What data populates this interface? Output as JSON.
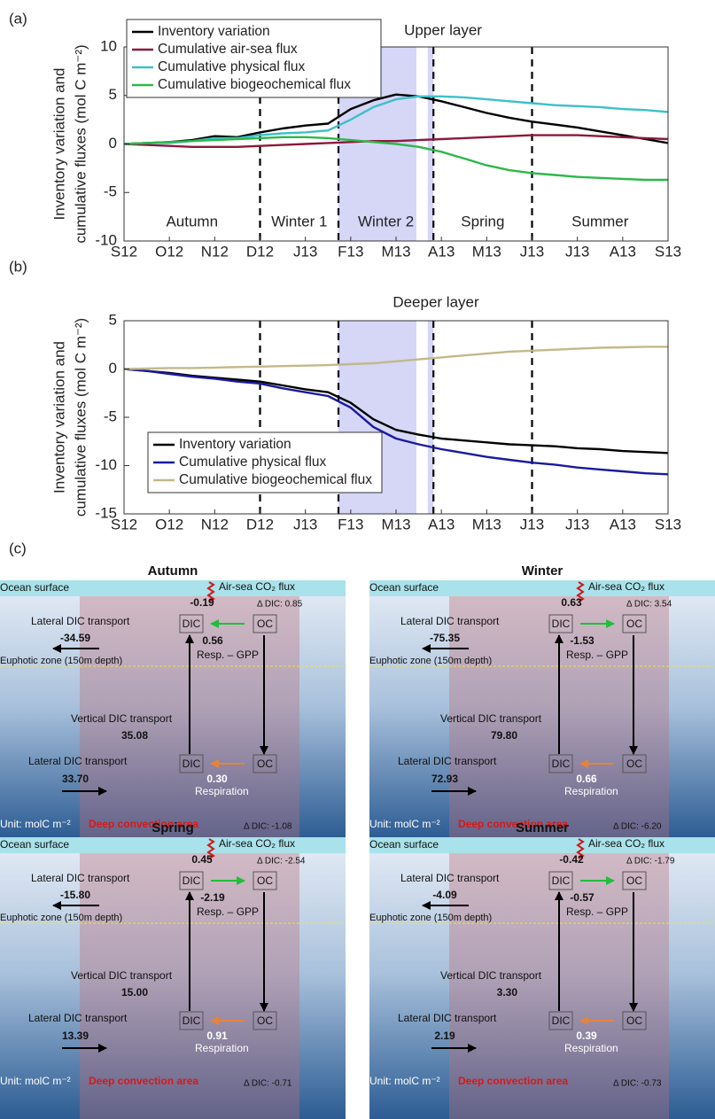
{
  "chart_data": [
    {
      "type": "line",
      "panel_label": "(a)",
      "title": "Upper layer",
      "ylabel": "Inventory variation and",
      "ylabel2": "cumulative fluxes (mol C m⁻²)",
      "categories": [
        "S12",
        null,
        "O12",
        null,
        "N12",
        null,
        "D12",
        null,
        "J13",
        null,
        "F13",
        null,
        "M13",
        null,
        "A13",
        null,
        "M13",
        null,
        "J13",
        null,
        "J13",
        null,
        "A13",
        null,
        "S13"
      ],
      "series": [
        {
          "name": "Inventory variation",
          "color": "#000000",
          "values": [
            0,
            0.1,
            0.2,
            0.4,
            0.8,
            0.7,
            1.2,
            1.6,
            1.9,
            2.1,
            3.6,
            4.5,
            5.1,
            4.9,
            4.4,
            3.8,
            3.2,
            2.7,
            2.3,
            2.0,
            1.7,
            1.3,
            0.9,
            0.5,
            0.1
          ]
        },
        {
          "name": "Cumulative air-sea flux",
          "color": "#8b1a3a",
          "values": [
            0,
            -0.1,
            -0.2,
            -0.3,
            -0.3,
            -0.3,
            -0.2,
            -0.1,
            0,
            0.1,
            0.2,
            0.3,
            0.3,
            0.4,
            0.5,
            0.6,
            0.7,
            0.8,
            0.9,
            0.9,
            0.9,
            0.8,
            0.7,
            0.6,
            0.5
          ]
        },
        {
          "name": "Cumulative physical flux",
          "color": "#3cc0c8",
          "values": [
            0,
            0.1,
            0.1,
            0.3,
            0.6,
            0.6,
            0.9,
            1.1,
            1.2,
            1.4,
            2.5,
            3.8,
            4.6,
            4.9,
            4.9,
            4.8,
            4.6,
            4.4,
            4.2,
            4.0,
            3.9,
            3.8,
            3.6,
            3.5,
            3.3
          ]
        },
        {
          "name": "Cumulative biogeochemical flux",
          "color": "#2db84a",
          "values": [
            0,
            0.1,
            0.2,
            0.3,
            0.4,
            0.5,
            0.6,
            0.7,
            0.7,
            0.6,
            0.4,
            0.2,
            0,
            -0.3,
            -0.8,
            -1.5,
            -2.2,
            -2.7,
            -3.0,
            -3.2,
            -3.4,
            -3.5,
            -3.6,
            -3.7,
            -3.7
          ]
        }
      ],
      "ylim": [
        -10,
        10
      ],
      "yticks": [
        -10,
        -5,
        0,
        5,
        10
      ],
      "legend": "upper left",
      "dividers": [
        6,
        9.46,
        13.65,
        18
      ],
      "shaded": [
        [
          9.46,
          12.9
        ],
        [
          13.4,
          13.65
        ]
      ],
      "shade_color": "#d6d6f7",
      "period_labels": [
        "Autumn",
        "Winter 1",
        "Winter 2",
        "Spring",
        "Summer"
      ]
    },
    {
      "type": "line",
      "panel_label": "(b)",
      "title": "Deeper layer",
      "ylabel": "Inventory variation and",
      "ylabel2": "cumulative fluxes (mol C m⁻²)",
      "categories": [
        "S12",
        null,
        "O12",
        null,
        "N12",
        null,
        "D12",
        null,
        "J13",
        null,
        "F13",
        null,
        "M13",
        null,
        "A13",
        null,
        "M13",
        null,
        "J13",
        null,
        "J13",
        null,
        "A13",
        null,
        "S13"
      ],
      "series": [
        {
          "name": "Inventory variation",
          "color": "#000000",
          "values": [
            0,
            -0.2,
            -0.4,
            -0.7,
            -0.9,
            -1.1,
            -1.3,
            -1.7,
            -2.1,
            -2.4,
            -3.5,
            -5.2,
            -6.3,
            -6.8,
            -7.2,
            -7.4,
            -7.6,
            -7.8,
            -7.9,
            -8.0,
            -8.2,
            -8.3,
            -8.5,
            -8.6,
            -8.7
          ]
        },
        {
          "name": "Cumulative physical flux",
          "color": "#1a1aa0",
          "values": [
            0,
            -0.2,
            -0.5,
            -0.8,
            -1.0,
            -1.3,
            -1.5,
            -2.0,
            -2.4,
            -2.8,
            -4.0,
            -6.0,
            -7.2,
            -7.8,
            -8.3,
            -8.7,
            -9.1,
            -9.4,
            -9.7,
            -9.9,
            -10.2,
            -10.4,
            -10.6,
            -10.8,
            -10.9
          ]
        },
        {
          "name": "Cumulative biogeochemical flux",
          "color": "#c2b98a",
          "values": [
            0,
            0.05,
            0.1,
            0.1,
            0.15,
            0.2,
            0.25,
            0.3,
            0.35,
            0.4,
            0.5,
            0.6,
            0.8,
            1.0,
            1.2,
            1.4,
            1.6,
            1.8,
            1.9,
            2.0,
            2.1,
            2.2,
            2.25,
            2.3,
            2.3
          ]
        }
      ],
      "ylim": [
        -15,
        5
      ],
      "yticks": [
        -15,
        -10,
        -5,
        0,
        5
      ],
      "legend": "lower left",
      "dividers": [
        6,
        9.46,
        13.65,
        18
      ],
      "shaded": [
        [
          9.46,
          12.9
        ],
        [
          13.4,
          13.65
        ]
      ],
      "shade_color": "#d6d6f7"
    }
  ],
  "diagram": {
    "panel_label": "(c)",
    "labels": {
      "ocean_surface": "Ocean surface",
      "air_sea": "Air-sea CO₂ flux",
      "lateral": "Lateral DIC transport",
      "dic": "DIC",
      "oc": "OC",
      "resp_gpp": "Resp. – GPP",
      "euphotic": "Euphotic zone (150m depth)",
      "vertical": "Vertical DIC transport",
      "respiration": "Respiration",
      "unit": "Unit: molC m⁻²",
      "deep": "Deep convection area"
    },
    "panels": [
      {
        "title": "Autumn",
        "air_sea": "-0.19",
        "delta_top": "Δ DIC: 0.85",
        "lateral_top": "-34.59",
        "resp_gpp": "0.56",
        "vertical": "35.08",
        "lateral_bottom": "33.70",
        "respiration": "0.30",
        "delta_bottom": "Δ DIC: -1.08"
      },
      {
        "title": "Winter",
        "air_sea": "0.63",
        "delta_top": "Δ DIC: 3.54",
        "lateral_top": "-75.35",
        "resp_gpp": "-1.53",
        "vertical": "79.80",
        "lateral_bottom": "72.93",
        "respiration": "0.66",
        "delta_bottom": "Δ DIC: -6.20"
      },
      {
        "title": "Spring",
        "air_sea": "0.45",
        "delta_top": "Δ DIC: -2.54",
        "lateral_top": "-15.80",
        "resp_gpp": "-2.19",
        "vertical": "15.00",
        "lateral_bottom": "13.39",
        "respiration": "0.91",
        "delta_bottom": "Δ DIC: -0.71"
      },
      {
        "title": "Summer",
        "air_sea": "-0.42",
        "delta_top": "Δ DIC: -1.79",
        "lateral_top": "-4.09",
        "resp_gpp": "-0.57",
        "vertical": "3.30",
        "lateral_bottom": "2.19",
        "respiration": "0.39",
        "delta_bottom": "Δ DIC: -0.73"
      }
    ]
  }
}
